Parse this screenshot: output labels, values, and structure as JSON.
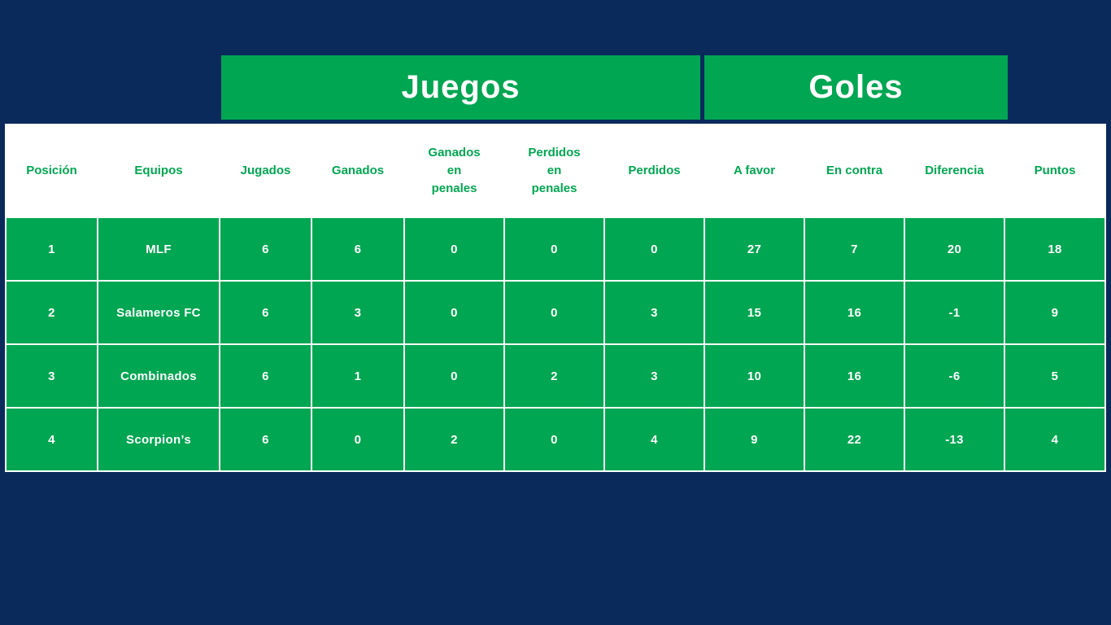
{
  "colors": {
    "background": "#0A2A5C",
    "accent_green": "#00A651",
    "text_on_green": "#FFFFFF",
    "header_text": "#00A651"
  },
  "banners": {
    "juegos": "Juegos",
    "goles": "Goles"
  },
  "table": {
    "header_labels": [
      "Posición",
      "Equipos",
      "Jugados",
      "Ganados",
      "Ganados\nen\npenales",
      "Perdidos\nen\npenales",
      "Perdidos",
      "A favor",
      "En contra",
      "Diferencia",
      "Puntos"
    ]
  },
  "chart_data": {
    "type": "table",
    "title": "",
    "column_groups": [
      {
        "label": "Juegos",
        "columns": [
          "Jugados",
          "Ganados",
          "Ganados en penales",
          "Perdidos en penales",
          "Perdidos"
        ]
      },
      {
        "label": "Goles",
        "columns": [
          "A favor",
          "En contra",
          "Diferencia"
        ]
      }
    ],
    "columns": [
      "Posición",
      "Equipos",
      "Jugados",
      "Ganados",
      "Ganados en penales",
      "Perdidos en penales",
      "Perdidos",
      "A favor",
      "En contra",
      "Diferencia",
      "Puntos"
    ],
    "rows": [
      [
        1,
        "MLF",
        6,
        6,
        0,
        0,
        0,
        27,
        7,
        20,
        18
      ],
      [
        2,
        "Salameros FC",
        6,
        3,
        0,
        0,
        3,
        15,
        16,
        -1,
        9
      ],
      [
        3,
        "Combinados",
        6,
        1,
        0,
        2,
        3,
        10,
        16,
        -6,
        5
      ],
      [
        4,
        "Scorpion’s",
        6,
        0,
        2,
        0,
        4,
        9,
        22,
        -13,
        4
      ]
    ]
  }
}
